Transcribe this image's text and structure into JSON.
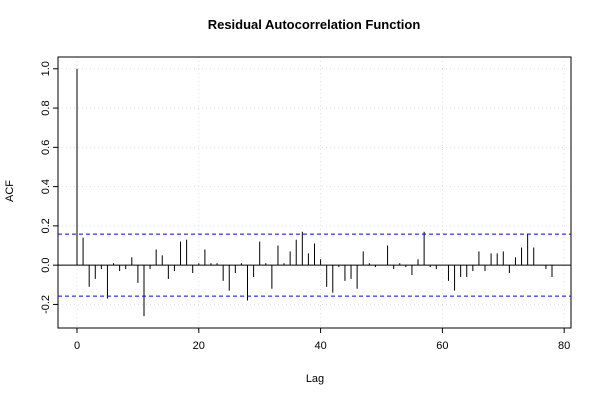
{
  "chart_data": {
    "type": "acf",
    "title": "Residual Autocorrelation Function",
    "x_label": "Lag",
    "y_label": "ACF",
    "x": [
      0,
      1,
      2,
      3,
      4,
      5,
      6,
      7,
      8,
      9,
      10,
      11,
      12,
      13,
      14,
      15,
      16,
      17,
      18,
      19,
      20,
      21,
      22,
      23,
      24,
      25,
      26,
      27,
      28,
      29,
      30,
      31,
      32,
      33,
      34,
      35,
      36,
      37,
      38,
      39,
      40,
      41,
      42,
      43,
      44,
      45,
      46,
      47,
      48,
      49,
      50,
      51,
      52,
      53,
      54,
      55,
      56,
      57,
      58,
      59,
      60,
      61,
      62,
      63,
      64,
      65,
      66,
      67,
      68,
      69,
      70,
      71,
      72,
      73,
      74,
      75,
      76,
      77,
      78
    ],
    "values": [
      1.0,
      0.14,
      -0.11,
      -0.07,
      -0.02,
      -0.17,
      0.01,
      -0.03,
      -0.02,
      0.04,
      -0.09,
      -0.26,
      -0.02,
      0.08,
      0.05,
      -0.07,
      -0.03,
      0.12,
      0.13,
      -0.04,
      0.01,
      0.08,
      0.01,
      0.01,
      -0.08,
      -0.13,
      -0.04,
      0.01,
      -0.18,
      -0.06,
      0.12,
      0.01,
      -0.12,
      0.1,
      0.01,
      0.07,
      0.13,
      0.17,
      0.06,
      0.11,
      0.03,
      -0.11,
      -0.14,
      -0.01,
      -0.08,
      -0.07,
      -0.12,
      0.07,
      0.01,
      -0.01,
      0.0,
      0.1,
      -0.02,
      0.01,
      -0.01,
      -0.05,
      0.03,
      0.17,
      -0.01,
      -0.02,
      0.0,
      -0.08,
      -0.13,
      -0.06,
      -0.06,
      -0.03,
      0.07,
      -0.03,
      0.06,
      0.06,
      0.07,
      -0.04,
      0.04,
      0.09,
      0.16,
      0.09,
      0.0,
      -0.02,
      -0.06
    ],
    "color": "#000000",
    "confidence_bounds": [
      0.158,
      -0.158
    ],
    "confidence_color": "#0000ff",
    "xlim": [
      -3.12,
      81.12
    ],
    "ylim": [
      -0.32,
      1.06
    ],
    "xticks": [
      0,
      20,
      40,
      60,
      80
    ],
    "yticks": [
      -0.2,
      {
        "value": 0,
        "label": "0.0"
      },
      0.2,
      0.4,
      0.6,
      0.8,
      {
        "value": 1,
        "label": "1.0"
      }
    ],
    "grid": true
  }
}
